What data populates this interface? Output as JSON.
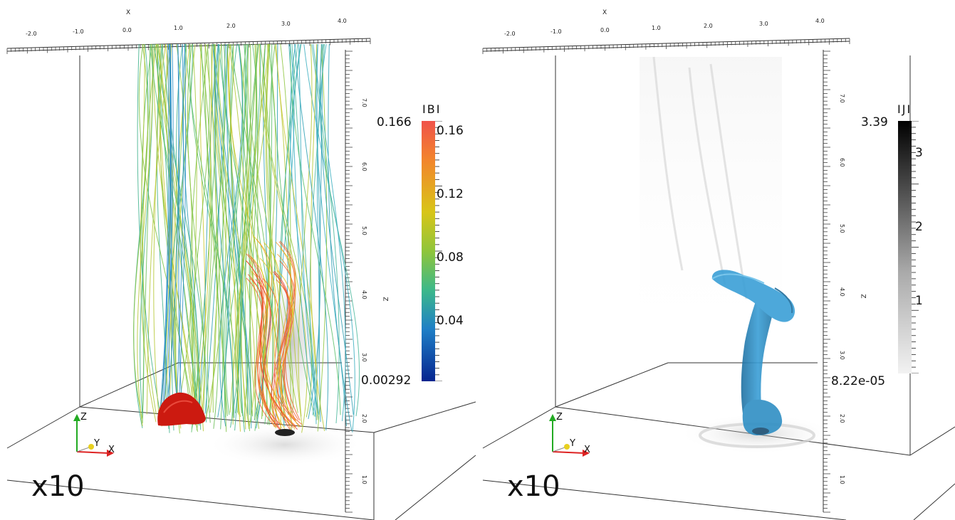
{
  "panels": [
    {
      "name": "left",
      "axes": {
        "x_title": "X",
        "x_ticks": [
          "-2.0",
          "-1.0",
          "0.0",
          "1.0",
          "2.0",
          "3.0",
          "4.0"
        ],
        "z_title": "Z",
        "z_ticks": [
          "7.0",
          "6.0",
          "5.0",
          "4.0",
          "3.0",
          "2.0",
          "1.0"
        ]
      },
      "colorbar": {
        "title": "IBI",
        "max_label": "0.166",
        "min_label": "0.00292",
        "tick_labels": [
          "0.16",
          "0.12",
          "0.08",
          "0.04"
        ],
        "colormap": "jet",
        "range": [
          0.00292,
          0.166
        ],
        "ticks": [
          0.16,
          0.12,
          0.08,
          0.04
        ]
      },
      "triad": {
        "x": "X",
        "y": "Y",
        "z": "Z"
      },
      "frame_label": "x10"
    },
    {
      "name": "right",
      "axes": {
        "x_title": "X",
        "x_ticks": [
          "-2.0",
          "-1.0",
          "0.0",
          "1.0",
          "2.0",
          "3.0",
          "4.0"
        ],
        "z_title": "Z",
        "z_ticks": [
          "7.0",
          "6.0",
          "5.0",
          "4.0",
          "3.0",
          "2.0",
          "1.0"
        ]
      },
      "colorbar": {
        "title": "IJI",
        "max_label": "3.39",
        "min_label": "8.22e-05",
        "tick_labels": [
          "3",
          "2",
          "1"
        ],
        "colormap": "grayscale",
        "range": [
          8.22e-05,
          3.39
        ],
        "ticks": [
          3,
          2,
          1
        ]
      },
      "triad": {
        "x": "X",
        "y": "Y",
        "z": "Z"
      },
      "frame_label": "x10"
    }
  ],
  "colors": {
    "isosurface_red": "#cc1a10",
    "isosurface_blue": "#2f8fc4",
    "triad_x": "#dd2222",
    "triad_y": "#e8d020",
    "triad_z": "#22aa22"
  }
}
